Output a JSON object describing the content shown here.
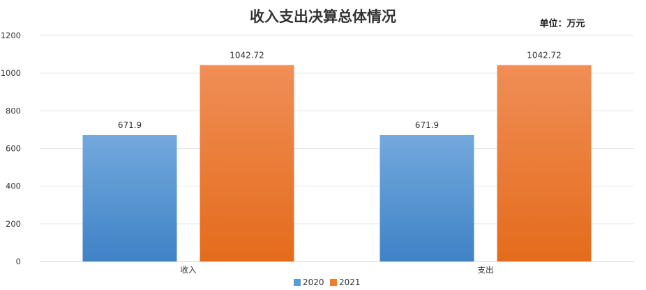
{
  "chart_data": {
    "type": "bar",
    "title": "收入支出决算总体情况",
    "unit_label": "单位：万元",
    "categories": [
      "收入",
      "支出"
    ],
    "series": [
      {
        "name": "2020",
        "values": [
          671.9,
          671.9
        ],
        "color": "#5b9bd5"
      },
      {
        "name": "2021",
        "values": [
          1042.72,
          1042.72
        ],
        "color": "#ed7d31"
      }
    ],
    "value_labels": [
      [
        "671.9",
        "671.9"
      ],
      [
        "1042.72",
        "1042.72"
      ]
    ],
    "xlabel": "",
    "ylabel": "",
    "ylim": [
      0,
      1200
    ],
    "yticks": [
      "0",
      "200",
      "400",
      "600",
      "800",
      "1000",
      "1200"
    ],
    "grid": true,
    "legend_position": "bottom"
  }
}
